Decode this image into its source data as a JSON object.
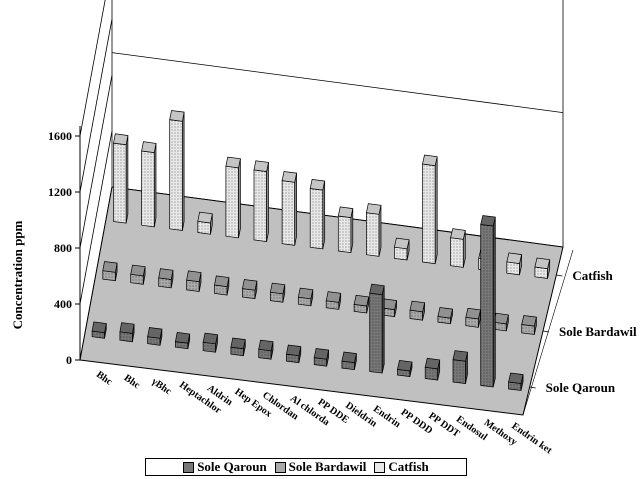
{
  "chart_data": {
    "type": "bar",
    "title": "",
    "ylabel": "Concentration ppm",
    "ylim": [
      0,
      1600
    ],
    "yticks": [
      0,
      400,
      800,
      1200,
      1600
    ],
    "categories": [
      "Bhc",
      "Bhc",
      "γBhc",
      "Heptachlor",
      "Aldrin",
      "Hep Epox",
      "Chlordan",
      "Al chlorda",
      "PP DDE",
      "Dieldrin",
      "Endrin",
      "PP DDD",
      "PP DDT",
      "Endosul",
      "Methoxy",
      "Endrin ket"
    ],
    "series": [
      {
        "name": "Sole Qaroun",
        "color": "#777777",
        "values": [
          40,
          60,
          50,
          40,
          60,
          50,
          60,
          50,
          50,
          50,
          560,
          40,
          80,
          160,
          1150,
          50
        ]
      },
      {
        "name": "Sole Bardawil",
        "color": "#aaaaaa",
        "values": [
          60,
          60,
          60,
          70,
          60,
          60,
          60,
          50,
          50,
          50,
          50,
          60,
          40,
          60,
          50,
          60
        ]
      },
      {
        "name": "Catfish",
        "color": "#e8e8e8",
        "values": [
          560,
          530,
          780,
          80,
          500,
          500,
          450,
          420,
          250,
          300,
          80,
          700,
          200,
          80,
          80,
          70
        ]
      }
    ],
    "grid": true,
    "legend_position": "bottom"
  },
  "colors": {
    "floor": "#c0c0c0",
    "background": "#ffffff"
  }
}
